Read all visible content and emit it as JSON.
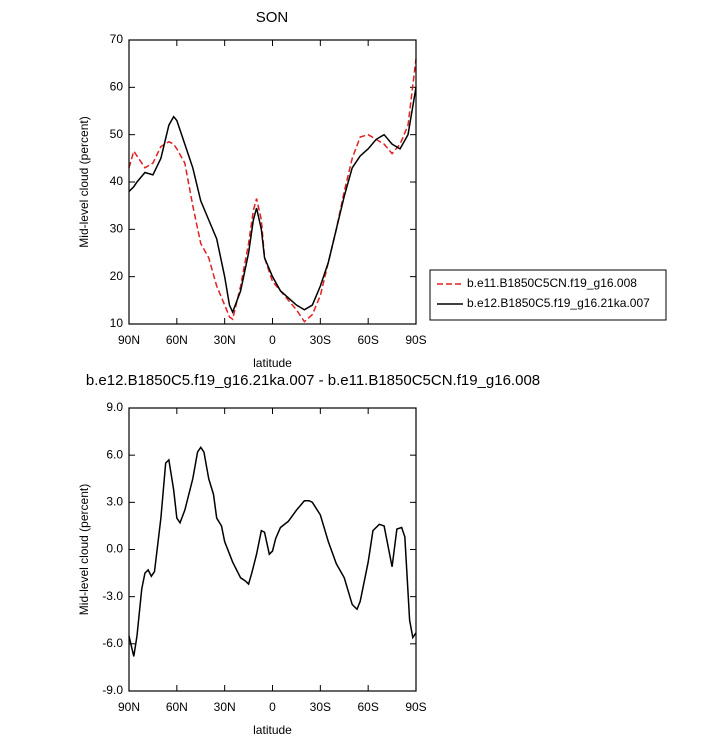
{
  "chart_data": [
    {
      "type": "line",
      "title": "SON",
      "xlabel": "latitude",
      "ylabel": "Mid-level cloud (percent)",
      "x": [
        90,
        87,
        85,
        80,
        75,
        70,
        65,
        62,
        60,
        55,
        50,
        45,
        40,
        35,
        30,
        27,
        25,
        20,
        15,
        12,
        10,
        7,
        5,
        0,
        -5,
        -10,
        -15,
        -20,
        -25,
        -30,
        -35,
        -40,
        -45,
        -50,
        -55,
        -60,
        -65,
        -70,
        -75,
        -80,
        -85,
        -90
      ],
      "series": [
        {
          "name": "b.e11.B1850C5CN.f19_g16.008",
          "color": "#e02020",
          "line_style": "dashed",
          "values": [
            43,
            46.5,
            45.5,
            43,
            44,
            47.5,
            48.5,
            48,
            47,
            44,
            35,
            27,
            24,
            18,
            14,
            11.5,
            11,
            18,
            27,
            34,
            36.5,
            32,
            24,
            19,
            17,
            15,
            13,
            10.5,
            12,
            16,
            23,
            30,
            38,
            45,
            49.5,
            50,
            49,
            48,
            46,
            48,
            52,
            66
          ]
        },
        {
          "name": "b.e12.B1850C5.f19_g16.21ka.007",
          "color": "#000000",
          "line_style": "solid",
          "values": [
            38,
            39,
            40,
            42,
            41.5,
            45,
            52,
            53.8,
            53,
            48,
            43,
            36,
            32,
            28,
            20,
            14,
            12.5,
            17,
            25,
            32,
            34.5,
            30,
            24,
            20,
            17,
            15.5,
            14,
            13,
            14,
            18,
            23,
            30,
            37,
            43,
            45.5,
            47,
            49,
            50,
            48,
            47,
            50,
            60
          ]
        }
      ],
      "xlim": [
        90,
        -90
      ],
      "xticks": [
        {
          "value": 90,
          "label": "90N"
        },
        {
          "value": 60,
          "label": "60N"
        },
        {
          "value": 30,
          "label": "30N"
        },
        0,
        {
          "value": -30,
          "label": "30S"
        },
        {
          "value": -60,
          "label": "60S"
        },
        {
          "value": -90,
          "label": "90S"
        }
      ],
      "ylim": [
        10,
        70
      ],
      "yticks": [
        10,
        20,
        30,
        40,
        50,
        60,
        70
      ]
    },
    {
      "type": "line",
      "title": "b.e12.B1850C5.f19_g16.21ka.007 - b.e11.B1850C5CN.f19_g16.008",
      "xlabel": "latitude",
      "ylabel": "Mid-level cloud (percent)",
      "x": [
        90,
        87,
        85,
        82,
        80,
        78,
        76,
        74,
        70,
        67,
        65,
        62,
        60,
        58,
        55,
        50,
        47,
        45,
        43,
        40,
        37,
        35,
        32,
        30,
        25,
        20,
        17,
        15,
        13,
        10,
        7,
        5,
        2,
        0,
        -2,
        -5,
        -10,
        -15,
        -20,
        -23,
        -25,
        -30,
        -35,
        -40,
        -45,
        -50,
        -53,
        -55,
        -60,
        -63,
        -67,
        -70,
        -75,
        -78,
        -81,
        -83,
        -86,
        -88,
        -90
      ],
      "series": [
        {
          "color": "#000000",
          "line_style": "solid",
          "values": [
            -5.5,
            -6.8,
            -5.5,
            -2.5,
            -1.5,
            -1.3,
            -1.7,
            -1.4,
            2,
            5.5,
            5.7,
            3.8,
            2,
            1.7,
            2.5,
            4.5,
            6.2,
            6.5,
            6.2,
            4.5,
            3.5,
            2,
            1.5,
            0.5,
            -0.8,
            -1.8,
            -2,
            -2.2,
            -1.5,
            -0.3,
            1.2,
            1.1,
            -0.3,
            -0.1,
            0.7,
            1.4,
            1.8,
            2.5,
            3.1,
            3.1,
            3.0,
            2.2,
            0.5,
            -0.9,
            -1.8,
            -3.5,
            -3.8,
            -3.3,
            -0.8,
            1.2,
            1.6,
            1.5,
            -1.1,
            1.3,
            1.4,
            0.8,
            -4.5,
            -5.6,
            -5.3
          ]
        }
      ],
      "xlim": [
        90,
        -90
      ],
      "xticks": [
        {
          "value": 90,
          "label": "90N"
        },
        {
          "value": 60,
          "label": "60N"
        },
        {
          "value": 30,
          "label": "30N"
        },
        0,
        {
          "value": -30,
          "label": "30S"
        },
        {
          "value": -60,
          "label": "60S"
        },
        {
          "value": -90,
          "label": "90S"
        }
      ],
      "ylim": [
        -9,
        9
      ],
      "yticks": [
        {
          "value": -9,
          "label": "-9.0"
        },
        {
          "value": -6,
          "label": "-6.0"
        },
        {
          "value": -3,
          "label": "-3.0"
        },
        {
          "value": 0,
          "label": "0.0"
        },
        {
          "value": 3,
          "label": "3.0"
        },
        {
          "value": 6,
          "label": "6.0"
        },
        {
          "value": 9,
          "label": "9.0"
        }
      ]
    }
  ]
}
